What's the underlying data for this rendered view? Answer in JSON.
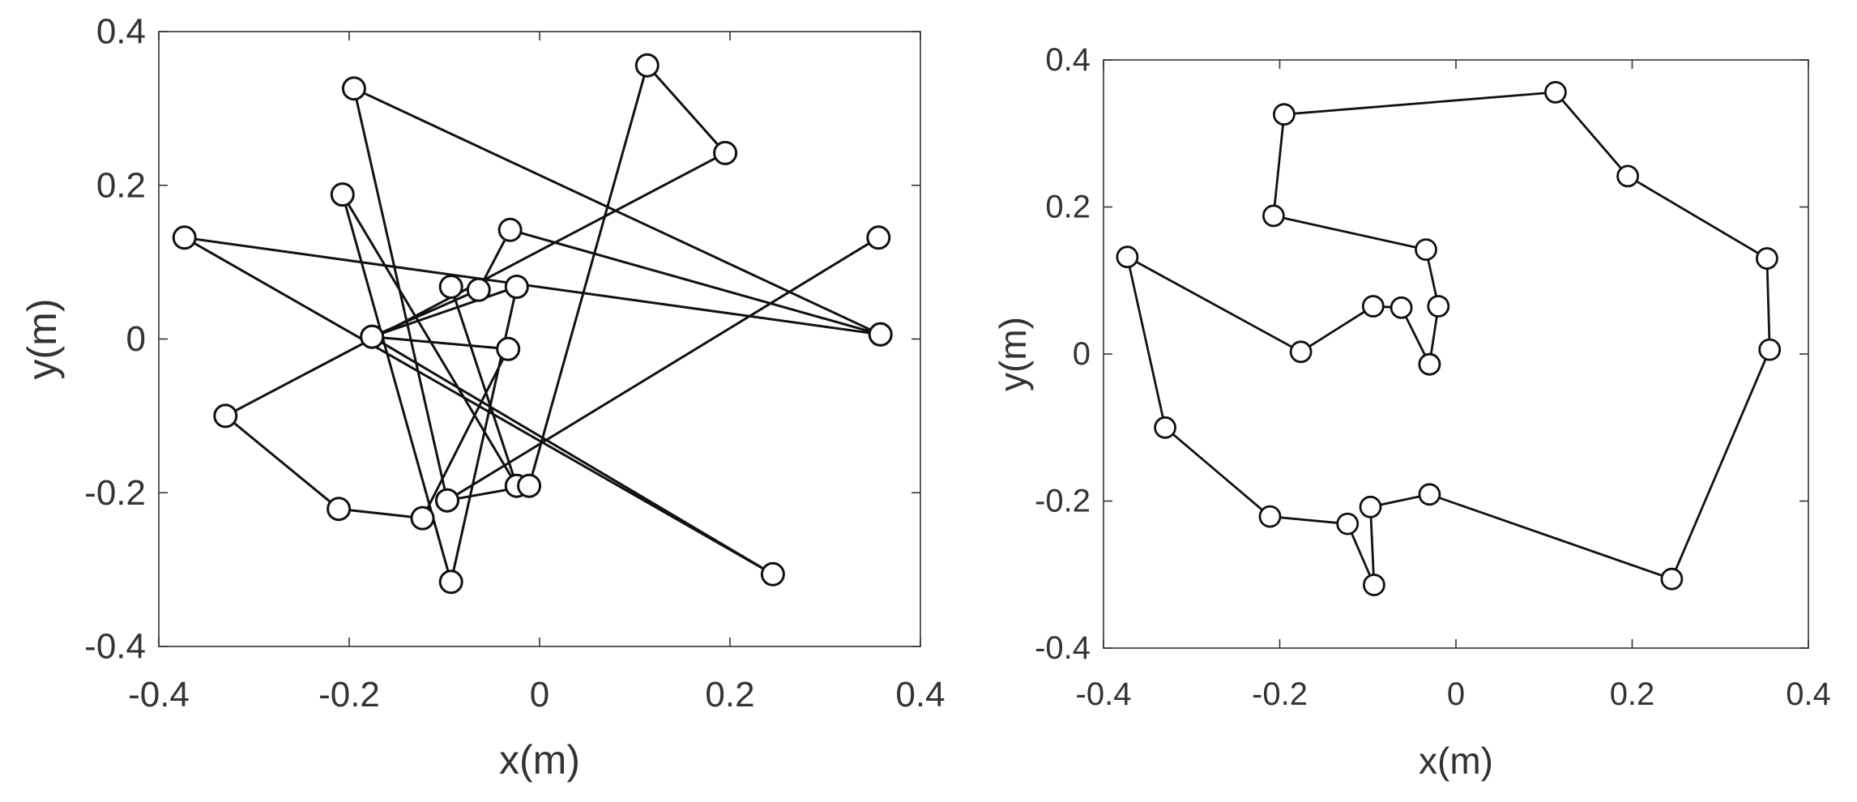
{
  "chart_data": [
    {
      "type": "line",
      "title": "",
      "xlabel": "x(m)",
      "ylabel": "y(m)",
      "xlim": [
        -0.4,
        0.4
      ],
      "ylim": [
        -0.4,
        0.4
      ],
      "xticks": [
        -0.4,
        -0.2,
        0,
        0.2,
        0.4
      ],
      "yticks": [
        -0.4,
        -0.2,
        0,
        0.2,
        0.4
      ],
      "xtick_labels": [
        "-0.4",
        "-0.2",
        "0",
        "0.2",
        "0.4"
      ],
      "ytick_labels": [
        "-0.4",
        "-0.2",
        "0",
        "0.2",
        "0.4"
      ],
      "grid": false,
      "line_color": "#111111",
      "marker": "open-circle",
      "series": [
        {
          "points": [
            [
              -0.093,
              0.068
            ],
            [
              -0.024,
              -0.191
            ],
            [
              -0.207,
              0.188
            ],
            [
              -0.093,
              -0.316
            ],
            [
              -0.024,
              0.068
            ],
            [
              -0.176,
              0.003
            ],
            [
              0.245,
              -0.306
            ],
            [
              -0.373,
              0.132
            ],
            [
              0.358,
              0.006
            ],
            [
              -0.031,
              0.142
            ],
            [
              -0.064,
              0.064
            ],
            [
              -0.176,
              0.003
            ],
            [
              -0.033,
              -0.013
            ],
            [
              -0.123,
              -0.233
            ],
            [
              -0.211,
              -0.221
            ],
            [
              -0.33,
              -0.1
            ],
            [
              0.195,
              0.242
            ],
            [
              0.113,
              0.356
            ],
            [
              -0.011,
              -0.191
            ],
            [
              -0.097,
              -0.21
            ],
            [
              0.356,
              0.132
            ],
            [
              -0.097,
              -0.21
            ],
            [
              -0.195,
              0.326
            ],
            [
              0.358,
              0.006
            ]
          ]
        }
      ]
    },
    {
      "type": "line",
      "title": "",
      "xlabel": "x(m)",
      "ylabel": "y(m)",
      "xlim": [
        -0.4,
        0.4
      ],
      "ylim": [
        -0.4,
        0.4
      ],
      "xticks": [
        -0.4,
        -0.2,
        0,
        0.2,
        0.4
      ],
      "yticks": [
        -0.4,
        -0.2,
        0,
        0.2,
        0.4
      ],
      "xtick_labels": [
        "-0.4",
        "-0.2",
        "0",
        "0.2",
        "0.4"
      ],
      "ytick_labels": [
        "-0.4",
        "-0.2",
        "0",
        "0.2",
        "0.4"
      ],
      "grid": false,
      "line_color": "#111111",
      "marker": "open-circle",
      "series": [
        {
          "points": [
            [
              -0.03,
              -0.014
            ],
            [
              -0.02,
              0.065
            ],
            [
              -0.034,
              0.142
            ],
            [
              -0.207,
              0.188
            ],
            [
              -0.195,
              0.326
            ],
            [
              0.113,
              0.356
            ],
            [
              0.195,
              0.242
            ],
            [
              0.353,
              0.13
            ],
            [
              0.356,
              0.006
            ],
            [
              0.245,
              -0.306
            ],
            [
              -0.03,
              -0.191
            ],
            [
              -0.097,
              -0.208
            ],
            [
              -0.093,
              -0.314
            ],
            [
              -0.123,
              -0.231
            ],
            [
              -0.211,
              -0.221
            ],
            [
              -0.33,
              -0.1
            ],
            [
              -0.373,
              0.132
            ],
            [
              -0.176,
              0.003
            ],
            [
              -0.094,
              0.065
            ],
            [
              -0.062,
              0.063
            ],
            [
              -0.03,
              -0.014
            ]
          ]
        }
      ]
    }
  ]
}
